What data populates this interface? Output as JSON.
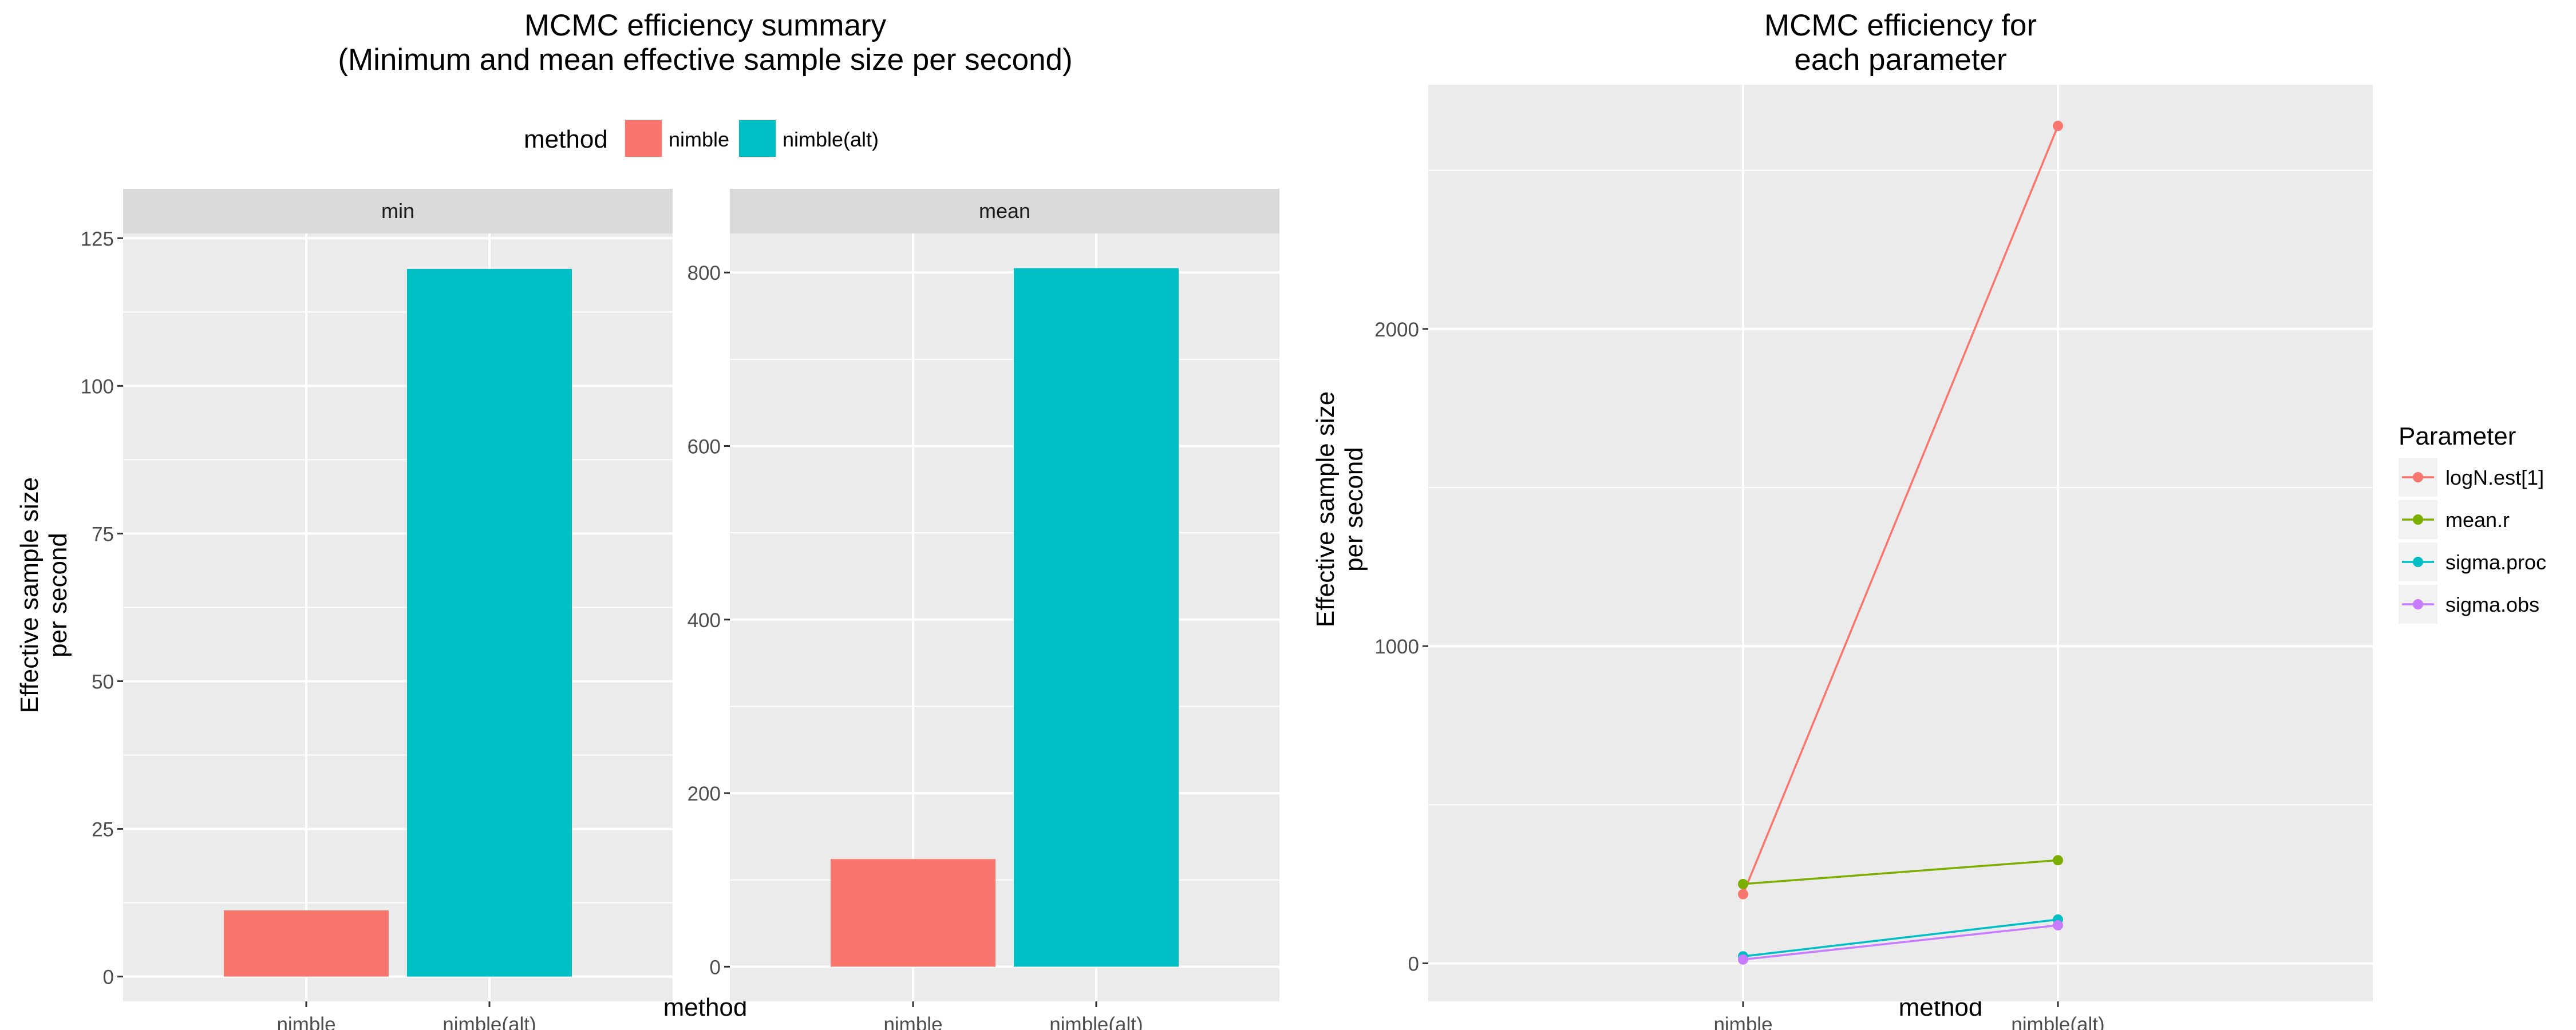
{
  "colors": {
    "panel_bg": "#EBEBEB",
    "grid": "#FFFFFF",
    "strip_bg": "#D9D9D9",
    "tick_text": "#4D4D4D",
    "nimble": "#F8766D",
    "nimble_alt": "#00BFC4"
  },
  "chart_data": [
    {
      "type": "bar",
      "title": "MCMC efficiency summary",
      "subtitle": "(Minimum and mean effective sample size per second)",
      "xlabel": "method",
      "ylabel": "Effective sample size per second",
      "ylabel_lines": [
        "Effective sample size",
        "per second"
      ],
      "legend": {
        "title": "method",
        "position": "top",
        "entries": [
          {
            "label": "nimble",
            "color": "#F8766D"
          },
          {
            "label": "nimble(alt)",
            "color": "#00BFC4"
          }
        ]
      },
      "categories": [
        "nimble",
        "nimble(alt)"
      ],
      "facets": [
        {
          "strip": "min",
          "values": [
            11.2,
            119.8
          ],
          "ylim": [
            -4.2,
            125.8
          ],
          "yticks": [
            0,
            25,
            50,
            75,
            100,
            125
          ]
        },
        {
          "strip": "mean",
          "values": [
            124,
            805
          ],
          "ylim": [
            -40,
            845
          ],
          "yticks": [
            0,
            200,
            400,
            600,
            800
          ]
        }
      ],
      "grid": true
    },
    {
      "type": "line",
      "title": "MCMC efficiency for each parameter",
      "title_lines": [
        "MCMC efficiency for",
        "each parameter"
      ],
      "xlabel": "method",
      "ylabel": "Effective sample size per second",
      "ylabel_lines": [
        "Effective sample size",
        "per second"
      ],
      "x": [
        "nimble",
        "nimble(alt)"
      ],
      "ylim": [
        -120,
        2770
      ],
      "yticks": [
        0,
        1000,
        2000
      ],
      "grid": true,
      "legend": {
        "title": "Parameter",
        "position": "right"
      },
      "series": [
        {
          "name": "logN.est[1]",
          "color": "#F8766D",
          "values": [
            218,
            2640
          ]
        },
        {
          "name": "mean.r",
          "color": "#7CAE00",
          "values": [
            250,
            325
          ]
        },
        {
          "name": "sigma.proc",
          "color": "#00BFC4",
          "values": [
            22,
            138
          ]
        },
        {
          "name": "sigma.obs",
          "color": "#C77CFF",
          "values": [
            12,
            120
          ]
        }
      ]
    }
  ]
}
